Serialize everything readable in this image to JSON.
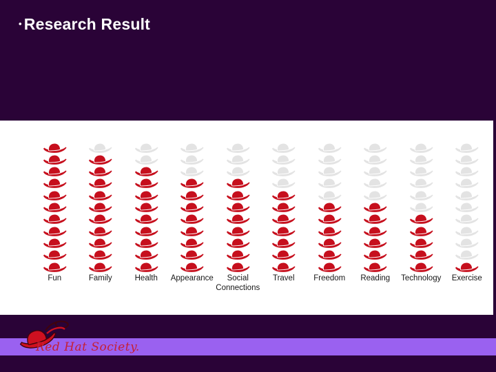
{
  "slide": {
    "bullet": "•",
    "title": "Research Result"
  },
  "chart_data": {
    "type": "bar",
    "subtype": "pictogram-column",
    "title": "Research Result",
    "categories": [
      "Fun",
      "Family",
      "Health",
      "Appearance",
      "Social Connections",
      "Travel",
      "Freedom",
      "Reading",
      "Technology",
      "Exercise"
    ],
    "values": [
      11,
      10,
      9,
      8,
      8,
      7,
      6,
      6,
      5,
      1
    ],
    "max_icons": 11,
    "ylim": [
      0,
      11
    ],
    "icon": "red-hat-icon",
    "icon_filled_color": "#c60f1d",
    "icon_empty_color": "#e3e3e3",
    "fill_direction": "filled icons stack from bottom, empty icons on top",
    "legend": "none",
    "grid": "off",
    "plot_background": "#ffffff"
  },
  "footer": {
    "logo_text": "Red Hat Society.",
    "logo_icon": "red-hat-logo-icon"
  },
  "colors": {
    "slide_background": "#2a0337",
    "footer_band": "#9a61f0",
    "title_text": "#ffffff",
    "category_label_text": "#161616",
    "logo_text": "#c52036"
  }
}
